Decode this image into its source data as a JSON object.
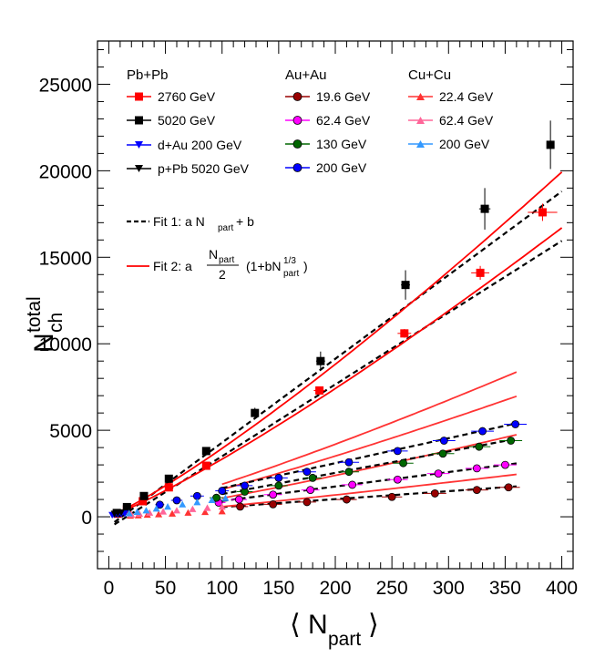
{
  "chart_data": {
    "type": "scatter",
    "xlabel_main": "⟨ N",
    "xlabel_sub": "part",
    "xlabel_close": "⟩",
    "ylabel_main": "N",
    "ylabel_sup": "total",
    "ylabel_sub": "ch",
    "xlim": [
      -10,
      410
    ],
    "ylim": [
      -3000,
      27500
    ],
    "xticks": [
      0,
      50,
      100,
      150,
      200,
      250,
      300,
      350,
      400
    ],
    "xtick_labels": [
      "0",
      "50",
      "100",
      "150",
      "200",
      "250",
      "300",
      "350",
      "400"
    ],
    "yticks": [
      0,
      5000,
      10000,
      15000,
      20000,
      25000
    ],
    "ytick_labels": [
      "0",
      "5000",
      "10000",
      "15000",
      "20000",
      "25000"
    ],
    "legend": {
      "headers": [
        "Pb+Pb",
        "Au+Au",
        "Cu+Cu"
      ],
      "entries": [
        {
          "label": "2760 GeV",
          "color": "#ff0000",
          "marker": "square"
        },
        {
          "label": "5020 GeV",
          "color": "#000000",
          "marker": "square"
        },
        {
          "label": "d+Au 200 GeV",
          "color": "#0000ff",
          "marker": "triangle-down"
        },
        {
          "label": "p+Pb 5020 GeV",
          "color": "#000000",
          "marker": "triangle-down"
        },
        {
          "label": "19.6 GeV",
          "color": "#990000",
          "marker": "circle"
        },
        {
          "label": "62.4 GeV",
          "color": "#ff00ff",
          "marker": "circle"
        },
        {
          "label": "130 GeV",
          "color": "#006600",
          "marker": "circle"
        },
        {
          "label": "200 GeV",
          "color": "#0000ff",
          "marker": "circle"
        },
        {
          "label": "22.4 GeV",
          "color": "#ff3333",
          "marker": "triangle-up"
        },
        {
          "label": "62.4 GeV",
          "color": "#ff6699",
          "marker": "triangle-up"
        },
        {
          "label": "200 GeV",
          "color": "#3399ff",
          "marker": "triangle-up"
        }
      ],
      "fit1": {
        "pre": "Fit 1: a N",
        "sub": "part",
        "post": "+ b"
      },
      "fit2": {
        "pre": "Fit 2: a",
        "frac_num_main": "N",
        "frac_num_sub": "part",
        "frac_den": "2",
        "post_main": "(1+bN",
        "post_sup": "1/3",
        "post_sub": "part",
        "post_close": ")"
      }
    },
    "fits": [
      {
        "name": "Fit 1 Pb+Pb 2760 GeV",
        "kind": "linear",
        "a": 41.5,
        "b": -650,
        "x_range": [
          5,
          400
        ],
        "color": "#000000"
      },
      {
        "name": "Fit 1 Pb+Pb 5020 GeV",
        "kind": "linear",
        "a": 48.4,
        "b": -550,
        "x_range": [
          5,
          400
        ],
        "color": "#000000"
      },
      {
        "name": "Fit 2 Pb+Pb 2760 GeV",
        "kind": "power",
        "a": 38.0,
        "b": 0.1625,
        "x_range": [
          5,
          400
        ],
        "color": "#ff0000"
      },
      {
        "name": "Fit 2 Pb+Pb 5020 GeV",
        "kind": "power",
        "a": 44.0,
        "b": 0.1716,
        "x_range": [
          5,
          400
        ],
        "color": "#ff0000"
      },
      {
        "name": "Fit 1 Au+Au 19.6 GeV",
        "kind": "linear",
        "a": 4.6,
        "b": 100,
        "x_range": [
          100,
          360
        ],
        "color": "#000000"
      },
      {
        "name": "Fit 2 Au+Au 19.6 GeV",
        "kind": "power",
        "a": 8.0,
        "b": 0.0987,
        "x_range": [
          100,
          360
        ],
        "color": "#ff3333"
      },
      {
        "name": "Fit 1 Au+Au 62.4 GeV",
        "kind": "linear",
        "a": 8.35,
        "b": 80,
        "x_range": [
          100,
          360
        ],
        "color": "#000000"
      },
      {
        "name": "Fit 2 Au+Au 62.4 GeV",
        "kind": "power",
        "a": 12.5,
        "b": 0.1558,
        "x_range": [
          100,
          360
        ],
        "color": "#ff3333"
      },
      {
        "name": "Fit 1 Au+Au 130 GeV",
        "kind": "linear",
        "a": 12.3,
        "b": 80,
        "x_range": [
          100,
          360
        ],
        "color": "#000000"
      },
      {
        "name": "Fit 2 Au+Au 130 GeV",
        "kind": "power",
        "a": 18.5,
        "b": 0.1535,
        "x_range": [
          100,
          360
        ],
        "color": "#ff3333"
      },
      {
        "name": "Fit 1 Au+Au 200 GeV",
        "kind": "linear",
        "a": 14.4,
        "b": 220,
        "x_range": [
          100,
          360
        ],
        "color": "#000000"
      },
      {
        "name": "Fit 2 Au+Au 200 GeV",
        "kind": "power",
        "a": 21.0,
        "b": 0.1706,
        "x_range": [
          100,
          360
        ],
        "color": "#ff3333"
      }
    ],
    "series": [
      {
        "name": "Pb+Pb 2760 GeV",
        "color": "#ff0000",
        "marker": "square",
        "size": 9,
        "points": [
          [
            383,
            17600,
            13,
            500
          ],
          [
            328,
            14100,
            8,
            400
          ],
          [
            261,
            10600,
            6,
            250
          ],
          [
            186,
            7300,
            5,
            200
          ],
          [
            86,
            2950,
            3,
            100
          ],
          [
            53,
            1700,
            2,
            80
          ],
          [
            30,
            900,
            2,
            50
          ],
          [
            16,
            420,
            1,
            30
          ],
          [
            8,
            180,
            1,
            20
          ]
        ]
      },
      {
        "name": "Pb+Pb 5020 GeV",
        "color": "#000000",
        "marker": "square",
        "size": 9,
        "points": [
          [
            390,
            21500,
            0,
            1400
          ],
          [
            332,
            17800,
            5,
            1200
          ],
          [
            262,
            13400,
            4,
            850
          ],
          [
            187,
            9000,
            4,
            550
          ],
          [
            129,
            6000,
            3,
            300
          ],
          [
            86,
            3800,
            2,
            150
          ],
          [
            53,
            2200,
            2,
            100
          ],
          [
            31,
            1200,
            2,
            60
          ],
          [
            16,
            560,
            1,
            30
          ],
          [
            7,
            220,
            1,
            15
          ]
        ]
      },
      {
        "name": "d+Au 200 GeV",
        "color": "#0000ff",
        "marker": "triangle-down",
        "size": 8,
        "points": [
          [
            3,
            90,
            0,
            0
          ],
          [
            5,
            110,
            0,
            0
          ],
          [
            8,
            130,
            0,
            0
          ],
          [
            11,
            150,
            0,
            0
          ],
          [
            14,
            175,
            0,
            0
          ]
        ]
      },
      {
        "name": "p+Pb 5020 GeV",
        "color": "#000000",
        "marker": "triangle-down",
        "size": 8,
        "points": [
          [
            5,
            160,
            0,
            0
          ],
          [
            8,
            200,
            0,
            0
          ],
          [
            11,
            240,
            0,
            0
          ]
        ]
      },
      {
        "name": "Au+Au 19.6 GeV",
        "color": "#990000",
        "marker": "circle",
        "size": 8,
        "points": [
          [
            353,
            1700,
            10,
            60
          ],
          [
            325,
            1550,
            10,
            55
          ],
          [
            288,
            1350,
            10,
            50
          ],
          [
            250,
            1150,
            9,
            45
          ],
          [
            210,
            1000,
            9,
            40
          ],
          [
            175,
            850,
            8,
            35
          ],
          [
            145,
            720,
            8,
            30
          ],
          [
            116,
            590,
            7,
            25
          ]
        ]
      },
      {
        "name": "Au+Au 62.4 GeV",
        "color": "#ff00ff",
        "marker": "circle",
        "size": 8,
        "points": [
          [
            350,
            3000,
            10,
            100
          ],
          [
            325,
            2800,
            10,
            90
          ],
          [
            291,
            2500,
            10,
            80
          ],
          [
            255,
            2150,
            9,
            70
          ],
          [
            215,
            1850,
            9,
            60
          ],
          [
            178,
            1550,
            8,
            50
          ],
          [
            145,
            1280,
            8,
            45
          ],
          [
            115,
            1000,
            7,
            40
          ],
          [
            97,
            820,
            6,
            35
          ]
        ]
      },
      {
        "name": "Au+Au 130 GeV",
        "color": "#006600",
        "marker": "circle",
        "size": 8,
        "points": [
          [
            355,
            4400,
            10,
            150
          ],
          [
            327,
            4050,
            10,
            140
          ],
          [
            295,
            3650,
            10,
            130
          ],
          [
            260,
            3100,
            9,
            110
          ],
          [
            212,
            2600,
            9,
            90
          ],
          [
            180,
            2250,
            8,
            80
          ],
          [
            150,
            1800,
            8,
            70
          ],
          [
            120,
            1450,
            7,
            60
          ],
          [
            95,
            1100,
            6,
            50
          ]
        ]
      },
      {
        "name": "Au+Au 200 GeV",
        "color": "#0000ff",
        "marker": "circle",
        "size": 8,
        "points": [
          [
            359,
            5350,
            10,
            160
          ],
          [
            330,
            4950,
            10,
            150
          ],
          [
            296,
            4400,
            10,
            140
          ],
          [
            255,
            3800,
            9,
            120
          ],
          [
            212,
            3150,
            9,
            100
          ],
          [
            175,
            2600,
            8,
            90
          ],
          [
            150,
            2250,
            8,
            80
          ],
          [
            120,
            1800,
            7,
            70
          ],
          [
            100,
            1500,
            6,
            60
          ],
          [
            78,
            1200,
            6,
            50
          ],
          [
            60,
            950,
            5,
            40
          ],
          [
            45,
            700,
            4,
            35
          ]
        ]
      },
      {
        "name": "Cu+Cu 22.4 GeV",
        "color": "#ff3333",
        "marker": "triangle-up",
        "size": 8,
        "points": [
          [
            100,
            330,
            0,
            0
          ],
          [
            85,
            290,
            0,
            0
          ],
          [
            70,
            250,
            0,
            0
          ],
          [
            56,
            200,
            0,
            0
          ],
          [
            44,
            160,
            0,
            0
          ],
          [
            34,
            130,
            0,
            0
          ],
          [
            26,
            100,
            0,
            0
          ],
          [
            19,
            80,
            0,
            0
          ]
        ]
      },
      {
        "name": "Cu+Cu 62.4 GeV",
        "color": "#ff6699",
        "marker": "triangle-up",
        "size": 8,
        "points": [
          [
            100,
            600,
            0,
            0
          ],
          [
            87,
            530,
            0,
            0
          ],
          [
            74,
            460,
            0,
            0
          ],
          [
            60,
            380,
            0,
            0
          ],
          [
            48,
            320,
            0,
            0
          ],
          [
            36,
            250,
            0,
            0
          ],
          [
            27,
            190,
            0,
            0
          ],
          [
            20,
            140,
            0,
            0
          ]
        ]
      },
      {
        "name": "Cu+Cu 200 GeV",
        "color": "#3399ff",
        "marker": "triangle-up",
        "size": 8,
        "points": [
          [
            103,
            1100,
            0,
            0
          ],
          [
            91,
            980,
            0,
            0
          ],
          [
            78,
            860,
            0,
            0
          ],
          [
            65,
            730,
            0,
            0
          ],
          [
            52,
            600,
            0,
            0
          ],
          [
            42,
            490,
            0,
            0
          ],
          [
            33,
            380,
            0,
            0
          ],
          [
            25,
            300,
            0,
            0
          ],
          [
            18,
            220,
            0,
            0
          ]
        ]
      }
    ]
  }
}
